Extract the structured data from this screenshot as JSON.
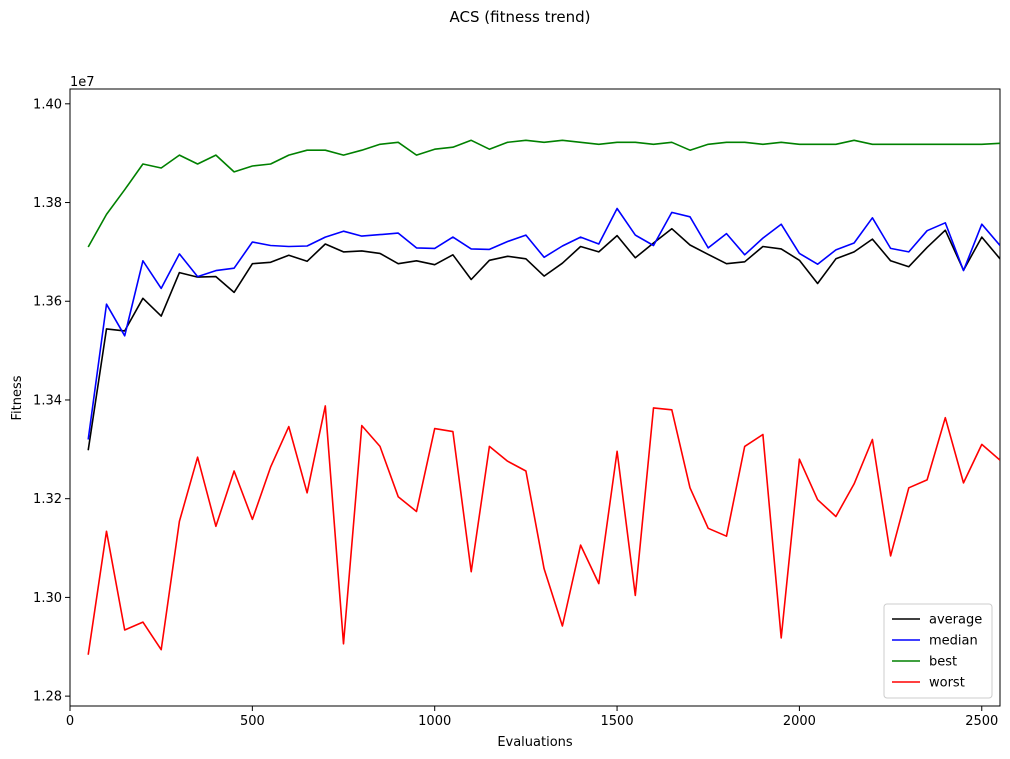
{
  "chart_data": {
    "type": "line",
    "title": "ACS (fitness trend)",
    "xlabel": "Evaluations",
    "ylabel": "Fitness",
    "y_offset_label": "1e7",
    "xlim": [
      0,
      2550
    ],
    "ylim": [
      1.278,
      1.403
    ],
    "xticks": [
      0,
      500,
      1000,
      1500,
      2000,
      2500
    ],
    "xtick_labels": [
      "0",
      "500",
      "1000",
      "1500",
      "2000",
      "2500"
    ],
    "yticks": [
      1.28,
      1.3,
      1.32,
      1.34,
      1.36,
      1.38,
      1.4
    ],
    "ytick_labels": [
      "1.28",
      "1.30",
      "1.32",
      "1.34",
      "1.36",
      "1.38",
      "1.40"
    ],
    "legend_position": "lower-right",
    "x": [
      50,
      100,
      150,
      200,
      250,
      300,
      350,
      400,
      450,
      500,
      550,
      600,
      650,
      700,
      750,
      800,
      850,
      900,
      950,
      1000,
      1050,
      1100,
      1150,
      1200,
      1250,
      1300,
      1350,
      1400,
      1450,
      1500,
      1550,
      1600,
      1650,
      1700,
      1750,
      1800,
      1850,
      1900,
      1950,
      2000,
      2050,
      2100,
      2150,
      2200,
      2250,
      2300,
      2350,
      2400,
      2450,
      2500,
      2550
    ],
    "series": [
      {
        "name": "average",
        "color": "#000000",
        "values": [
          1.3298,
          1.3544,
          1.354,
          1.3606,
          1.357,
          1.3658,
          1.3649,
          1.365,
          1.3618,
          1.3676,
          1.3679,
          1.3693,
          1.3681,
          1.3716,
          1.37,
          1.3702,
          1.3697,
          1.3676,
          1.3682,
          1.3674,
          1.3694,
          1.3644,
          1.3683,
          1.3691,
          1.3686,
          1.3651,
          1.3677,
          1.3711,
          1.37,
          1.3733,
          1.3688,
          1.3718,
          1.3747,
          1.3714,
          1.3695,
          1.3676,
          1.368,
          1.3711,
          1.3706,
          1.3683,
          1.3636,
          1.3686,
          1.37,
          1.3726,
          1.3682,
          1.367,
          1.3709,
          1.3744,
          1.3663,
          1.373,
          1.3686
        ]
      },
      {
        "name": "median",
        "color": "#0000ff",
        "values": [
          1.332,
          1.3594,
          1.353,
          1.3682,
          1.3626,
          1.3696,
          1.365,
          1.3662,
          1.3667,
          1.372,
          1.3713,
          1.3711,
          1.3712,
          1.373,
          1.3742,
          1.3732,
          1.3735,
          1.3738,
          1.3708,
          1.3707,
          1.373,
          1.3706,
          1.3705,
          1.3721,
          1.3734,
          1.3689,
          1.3712,
          1.373,
          1.3716,
          1.3788,
          1.3734,
          1.3713,
          1.378,
          1.3771,
          1.3708,
          1.3737,
          1.3694,
          1.3728,
          1.3756,
          1.3697,
          1.3675,
          1.3704,
          1.3718,
          1.3769,
          1.3707,
          1.37,
          1.3743,
          1.3759,
          1.3662,
          1.3756,
          1.3713
        ]
      },
      {
        "name": "best",
        "color": "#008000",
        "values": [
          1.371,
          1.3776,
          1.3826,
          1.3878,
          1.387,
          1.3896,
          1.3878,
          1.3896,
          1.3862,
          1.3874,
          1.3878,
          1.3896,
          1.3906,
          1.3906,
          1.3896,
          1.3906,
          1.3918,
          1.3922,
          1.3896,
          1.3908,
          1.3912,
          1.3926,
          1.3908,
          1.3922,
          1.3926,
          1.3922,
          1.3926,
          1.3922,
          1.3918,
          1.3922,
          1.3922,
          1.3918,
          1.3922,
          1.3906,
          1.3918,
          1.3922,
          1.3922,
          1.3918,
          1.3922,
          1.3918,
          1.3918,
          1.3918,
          1.3926,
          1.3918,
          1.3918,
          1.3918,
          1.3918,
          1.3918,
          1.3918,
          1.3918,
          1.392
        ]
      },
      {
        "name": "worst",
        "color": "#ff0000",
        "values": [
          1.2884,
          1.3134,
          1.2934,
          1.295,
          1.2894,
          1.3154,
          1.3284,
          1.3144,
          1.3256,
          1.3158,
          1.3264,
          1.3346,
          1.3212,
          1.3388,
          1.2906,
          1.3348,
          1.3306,
          1.3204,
          1.3174,
          1.3342,
          1.3336,
          1.3052,
          1.3306,
          1.3276,
          1.3256,
          1.3058,
          1.2942,
          1.3106,
          1.3028,
          1.3296,
          1.3004,
          1.3384,
          1.338,
          1.3222,
          1.314,
          1.3124,
          1.3306,
          1.333,
          1.2918,
          1.328,
          1.3198,
          1.3164,
          1.323,
          1.332,
          1.3084,
          1.3222,
          1.3238,
          1.3364,
          1.3232,
          1.331,
          1.3278
        ]
      }
    ]
  }
}
